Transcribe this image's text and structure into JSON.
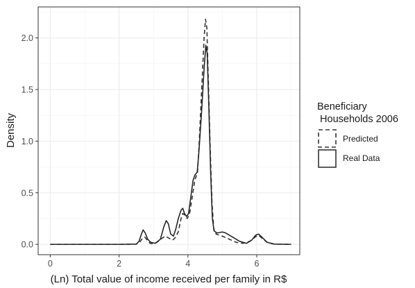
{
  "chart_data": {
    "type": "line",
    "title": "",
    "xlabel": "(Ln) Total value of income received per family in R$",
    "ylabel": "Density",
    "xlim": [
      -0.35,
      7.25
    ],
    "ylim": [
      -0.1,
      2.3
    ],
    "x_ticks": [
      0,
      2,
      4,
      6
    ],
    "x_tick_labels": [
      "0",
      "2",
      "4",
      "6"
    ],
    "y_ticks": [
      0,
      0.5,
      1,
      1.5,
      2
    ],
    "y_tick_labels": [
      "0.0",
      "0.5",
      "1.0",
      "1.5",
      "2.0"
    ],
    "grid": true,
    "legend": {
      "title_lines": [
        "Beneficiary",
        " Households 2006"
      ],
      "position": "right"
    },
    "series": [
      {
        "name": "Predicted",
        "line_style": "dashed",
        "color": "#333333",
        "points": [
          [
            0,
            0
          ],
          [
            1,
            0
          ],
          [
            2,
            0
          ],
          [
            2.5,
            0.002
          ],
          [
            2.6,
            0.02
          ],
          [
            2.68,
            0.06
          ],
          [
            2.75,
            0.07
          ],
          [
            2.82,
            0.04
          ],
          [
            2.9,
            0.01
          ],
          [
            3.0,
            0.005
          ],
          [
            3.1,
            0.02
          ],
          [
            3.25,
            0.06
          ],
          [
            3.35,
            0.08
          ],
          [
            3.45,
            0.06
          ],
          [
            3.55,
            0.04
          ],
          [
            3.62,
            0.06
          ],
          [
            3.72,
            0.12
          ],
          [
            3.8,
            0.25
          ],
          [
            3.85,
            0.3
          ],
          [
            3.92,
            0.28
          ],
          [
            3.98,
            0.25
          ],
          [
            4.05,
            0.3
          ],
          [
            4.12,
            0.45
          ],
          [
            4.2,
            0.62
          ],
          [
            4.28,
            0.7
          ],
          [
            4.33,
            1.0
          ],
          [
            4.4,
            1.5
          ],
          [
            4.47,
            2.0
          ],
          [
            4.51,
            2.18
          ],
          [
            4.55,
            2.1
          ],
          [
            4.6,
            1.5
          ],
          [
            4.65,
            0.9
          ],
          [
            4.7,
            0.4
          ],
          [
            4.75,
            0.15
          ],
          [
            4.82,
            0.1
          ],
          [
            4.9,
            0.09
          ],
          [
            5.0,
            0.08
          ],
          [
            5.2,
            0.05
          ],
          [
            5.4,
            0.02
          ],
          [
            5.6,
            0.01
          ],
          [
            5.8,
            0.03
          ],
          [
            5.95,
            0.07
          ],
          [
            6.05,
            0.09
          ],
          [
            6.15,
            0.06
          ],
          [
            6.3,
            0.02
          ],
          [
            6.5,
            0.003
          ],
          [
            7.0,
            0
          ]
        ]
      },
      {
        "name": "Real Data",
        "line_style": "solid",
        "color": "#262626",
        "points": [
          [
            0,
            0
          ],
          [
            1,
            0
          ],
          [
            2,
            0
          ],
          [
            2.5,
            0.003
          ],
          [
            2.58,
            0.03
          ],
          [
            2.65,
            0.1
          ],
          [
            2.7,
            0.14
          ],
          [
            2.76,
            0.11
          ],
          [
            2.83,
            0.05
          ],
          [
            2.92,
            0.02
          ],
          [
            3.05,
            0.01
          ],
          [
            3.2,
            0.05
          ],
          [
            3.3,
            0.17
          ],
          [
            3.37,
            0.23
          ],
          [
            3.43,
            0.2
          ],
          [
            3.5,
            0.1
          ],
          [
            3.58,
            0.08
          ],
          [
            3.65,
            0.15
          ],
          [
            3.72,
            0.25
          ],
          [
            3.8,
            0.33
          ],
          [
            3.85,
            0.35
          ],
          [
            3.9,
            0.3
          ],
          [
            3.96,
            0.27
          ],
          [
            4.02,
            0.3
          ],
          [
            4.08,
            0.45
          ],
          [
            4.15,
            0.62
          ],
          [
            4.2,
            0.67
          ],
          [
            4.27,
            0.7
          ],
          [
            4.32,
            0.9
          ],
          [
            4.4,
            1.3
          ],
          [
            4.47,
            1.7
          ],
          [
            4.52,
            1.93
          ],
          [
            4.56,
            1.85
          ],
          [
            4.61,
            1.3
          ],
          [
            4.66,
            0.7
          ],
          [
            4.71,
            0.25
          ],
          [
            4.76,
            0.13
          ],
          [
            4.85,
            0.11
          ],
          [
            5.0,
            0.12
          ],
          [
            5.1,
            0.11
          ],
          [
            5.3,
            0.07
          ],
          [
            5.5,
            0.03
          ],
          [
            5.7,
            0.01
          ],
          [
            5.85,
            0.04
          ],
          [
            5.97,
            0.09
          ],
          [
            6.05,
            0.1
          ],
          [
            6.15,
            0.07
          ],
          [
            6.3,
            0.02
          ],
          [
            6.5,
            0.003
          ],
          [
            7.0,
            0
          ]
        ]
      }
    ]
  }
}
